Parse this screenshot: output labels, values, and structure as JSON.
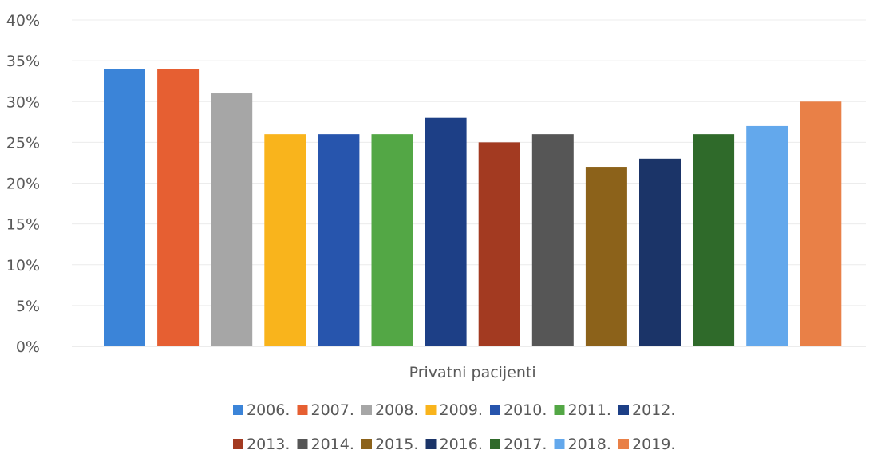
{
  "chart_data": {
    "type": "bar",
    "categories": [
      "Privatni pacijenti"
    ],
    "series": [
      {
        "name": "2006.",
        "values": [
          34
        ],
        "color": "#3b84d8"
      },
      {
        "name": "2007.",
        "values": [
          34
        ],
        "color": "#e65f32"
      },
      {
        "name": "2008.",
        "values": [
          31
        ],
        "color": "#a6a6a6"
      },
      {
        "name": "2009.",
        "values": [
          26
        ],
        "color": "#f9b41c"
      },
      {
        "name": "2010.",
        "values": [
          26
        ],
        "color": "#2755ad"
      },
      {
        "name": "2011.",
        "values": [
          26
        ],
        "color": "#53a745"
      },
      {
        "name": "2012.",
        "values": [
          28
        ],
        "color": "#1d3f86"
      },
      {
        "name": "2013.",
        "values": [
          25
        ],
        "color": "#a33a21"
      },
      {
        "name": "2014.",
        "values": [
          26
        ],
        "color": "#565656"
      },
      {
        "name": "2015.",
        "values": [
          22
        ],
        "color": "#8c621a"
      },
      {
        "name": "2016.",
        "values": [
          23
        ],
        "color": "#1b3468"
      },
      {
        "name": "2017.",
        "values": [
          26
        ],
        "color": "#2f6a2a"
      },
      {
        "name": "2018.",
        "values": [
          27
        ],
        "color": "#63a8ec"
      },
      {
        "name": "2019.",
        "values": [
          30
        ],
        "color": "#e98047"
      }
    ],
    "yticks": [
      "0%",
      "5%",
      "10%",
      "15%",
      "20%",
      "25%",
      "30%",
      "35%",
      "40%"
    ],
    "ylim": [
      0,
      40
    ],
    "xlabel": "Privatni pacijenti",
    "grid": true,
    "legend": "bottom"
  }
}
